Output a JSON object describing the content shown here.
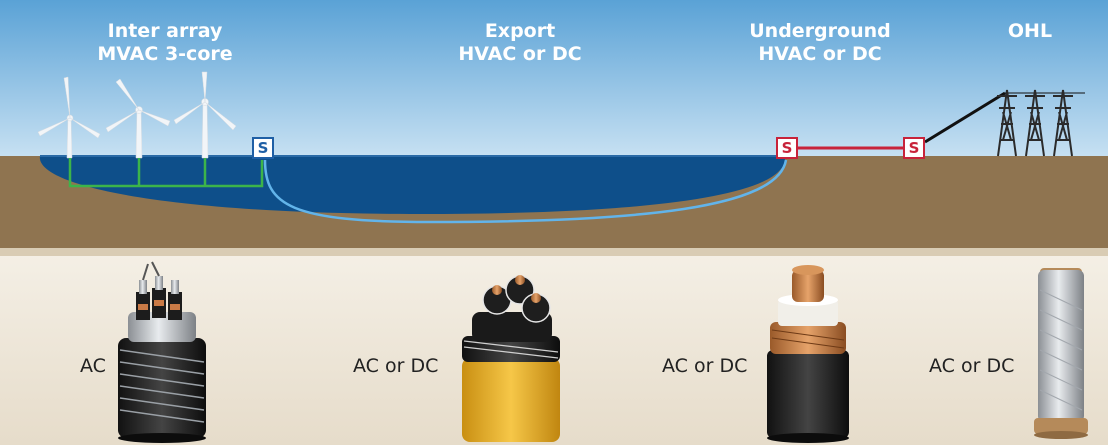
{
  "headers": {
    "inter_array": [
      "Inter array",
      "MVAC 3-core"
    ],
    "export": [
      "Export",
      "HVAC or DC"
    ],
    "underground": [
      "Underground",
      "HVAC or DC"
    ],
    "ohl": [
      "OHL"
    ]
  },
  "substation_label": "S",
  "cable_labels": {
    "inter_array": "AC",
    "export": "AC or DC",
    "underground": "AC or DC",
    "ohl": "AC or DC"
  },
  "colors": {
    "sky_top": "#5aa2d6",
    "sky_bottom": "#c6e0f2",
    "sea": "#0e4f8a",
    "ground": "#8f7450",
    "bottom_band": "#ede5d6",
    "inter_array_line": "#3cb44a",
    "export_line": "#62b4ea",
    "land_line": "#c8233a",
    "offshore_box": "#1f5fa5"
  },
  "icons": {
    "turbines": "wind-turbine-icon",
    "towers": "transmission-tower-icon",
    "cables": "cable-cross-section-icon"
  }
}
